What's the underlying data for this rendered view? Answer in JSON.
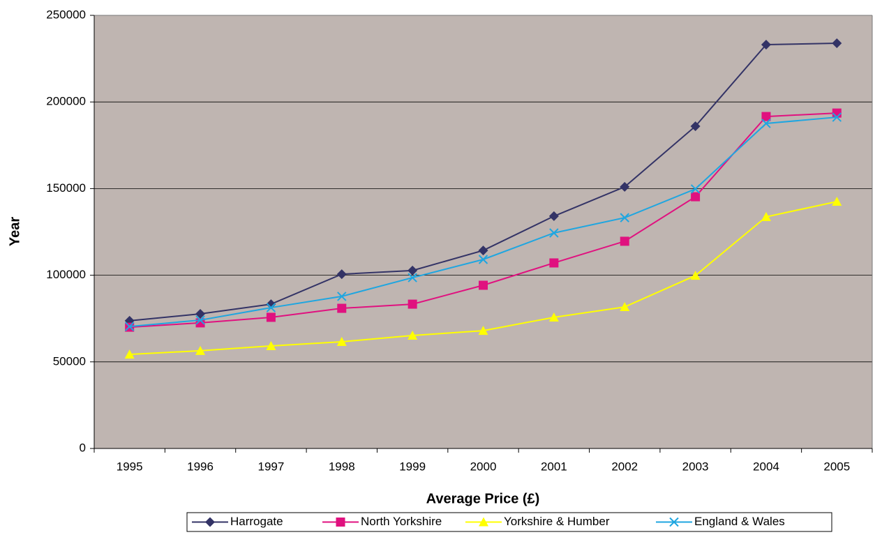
{
  "chart_data": {
    "type": "line",
    "x_label": "Average Price (£)",
    "y_label": "Year",
    "categories": [
      "1995",
      "1996",
      "1997",
      "1998",
      "1999",
      "2000",
      "2001",
      "2002",
      "2003",
      "2004",
      "2005"
    ],
    "ylim": [
      0,
      250000
    ],
    "yticks": [
      0,
      50000,
      100000,
      150000,
      200000,
      250000
    ],
    "grid": true,
    "legend": "bottom",
    "series": [
      {
        "name": "Harrogate",
        "color": "#333366",
        "marker": "diamond",
        "values": [
          73700,
          77700,
          83300,
          100600,
          102700,
          114300,
          134100,
          151000,
          186000,
          233100,
          233900
        ]
      },
      {
        "name": "North Yorkshire",
        "color": "#e0117f",
        "marker": "square",
        "values": [
          70000,
          72500,
          75700,
          80900,
          83300,
          94200,
          107100,
          119600,
          145300,
          191600,
          193600
        ]
      },
      {
        "name": "Yorkshire & Humber",
        "color": "#ffff00",
        "marker": "triangle",
        "values": [
          54300,
          56400,
          59200,
          61600,
          65200,
          68000,
          75700,
          81700,
          99800,
          133700,
          142500
        ]
      },
      {
        "name": "England & Wales",
        "color": "#1fa6e0",
        "marker": "x",
        "values": [
          70400,
          74100,
          81300,
          87800,
          98600,
          109100,
          124400,
          133200,
          149800,
          187600,
          191200
        ]
      }
    ]
  }
}
